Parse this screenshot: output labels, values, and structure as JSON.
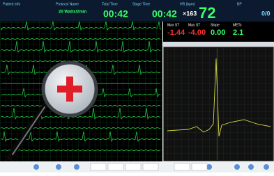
{
  "header": {
    "patient_label": "Patient Info",
    "protocol_label": "Protocol Name",
    "protocol": "20 Watts/2min",
    "total_time_label": "Total Time",
    "total_time": "00:42",
    "stage_time_label": "Stage Time",
    "stage_time": "00:42",
    "hr_label": "HR (bpm)",
    "hr_target": "×163",
    "hr": "72",
    "bp_label": "BP",
    "bp": "0/0"
  },
  "st_panel": {
    "labels": [
      "Max ST",
      "Max ST",
      "Slope",
      "METs"
    ],
    "values": [
      "-1.44",
      "-4.00",
      "0.00",
      "2.1"
    ]
  }
}
